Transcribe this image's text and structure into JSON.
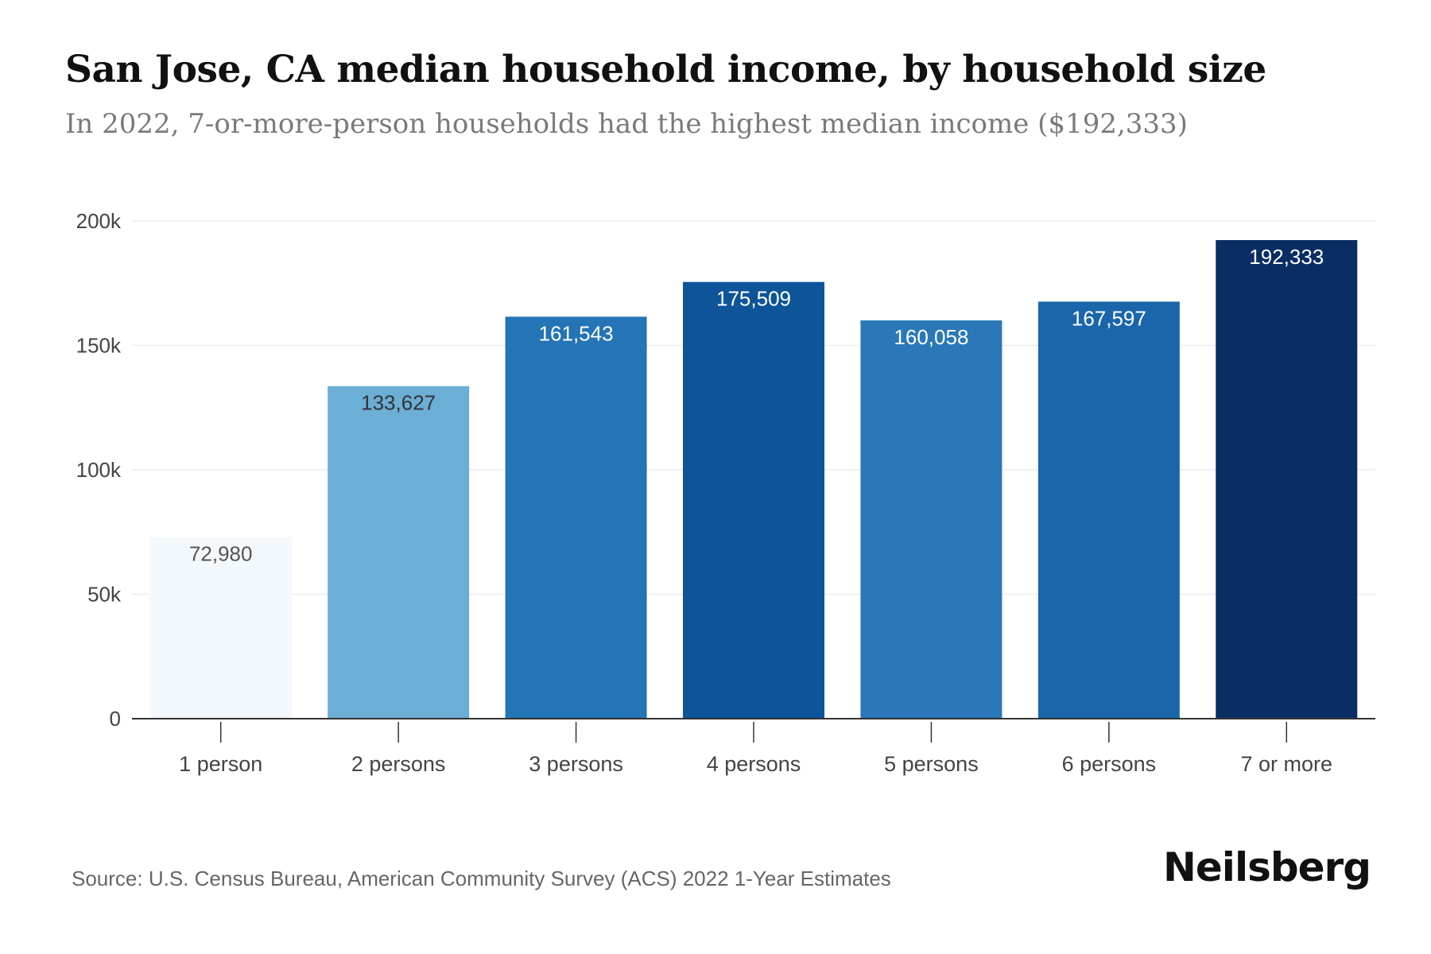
{
  "header": {
    "title": "San Jose, CA median household income, by household size",
    "subtitle": "In 2022, 7-or-more-person households had the highest median income ($192,333)"
  },
  "chart_data": {
    "type": "bar",
    "categories": [
      "1 person",
      "2 persons",
      "3 persons",
      "4 persons",
      "5 persons",
      "6 persons",
      "7 or more"
    ],
    "values": [
      72980,
      133627,
      161543,
      175509,
      160058,
      167597,
      192333
    ],
    "value_labels": [
      "72,980",
      "133,627",
      "161,543",
      "175,509",
      "160,058",
      "167,597",
      "192,333"
    ],
    "bar_colors": [
      "#f3f8fd",
      "#6baed6",
      "#2474b6",
      "#0d5499",
      "#2a78b7",
      "#1a66ab",
      "#0a2d63"
    ],
    "label_colors": [
      "#555555",
      "#333333",
      "#ffffff",
      "#ffffff",
      "#ffffff",
      "#ffffff",
      "#ffffff"
    ],
    "y_ticks": [
      0,
      50000,
      100000,
      150000,
      200000
    ],
    "y_tick_labels": [
      "0",
      "50k",
      "100k",
      "150k",
      "200k"
    ],
    "ylim": [
      0,
      200000
    ],
    "title": "San Jose, CA median household income, by household size",
    "xlabel": "",
    "ylabel": "",
    "grid": true
  },
  "footer": {
    "source": "Source: U.S. Census Bureau, American Community Survey (ACS) 2022 1-Year Estimates",
    "brand": "Neilsberg"
  }
}
